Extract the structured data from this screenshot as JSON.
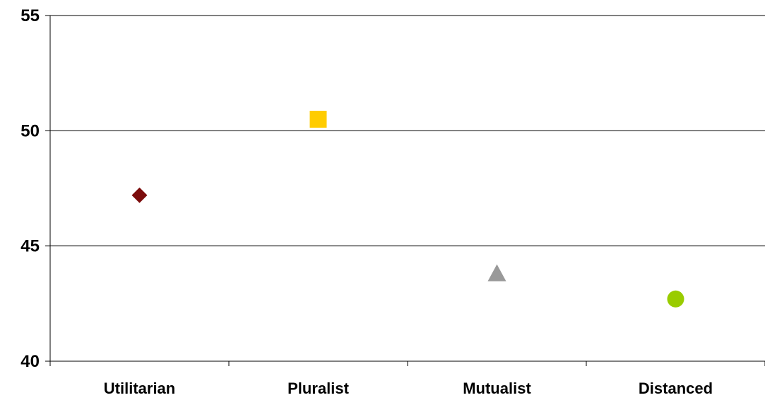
{
  "chart_data": {
    "type": "scatter",
    "title": "",
    "xlabel": "",
    "ylabel": "",
    "categories": [
      "Utilitarian",
      "Pluralist",
      "Mutualist",
      "Distanced"
    ],
    "ylim": [
      40,
      55
    ],
    "yticks": [
      55,
      50,
      45,
      40
    ],
    "grid": true,
    "legend": "none",
    "points": [
      {
        "category": "Utilitarian",
        "value": 47.2,
        "marker": "diamond",
        "color": "#7b0c0c"
      },
      {
        "category": "Pluralist",
        "value": 50.5,
        "marker": "square",
        "color": "#ffcc00"
      },
      {
        "category": "Mutualist",
        "value": 43.8,
        "marker": "triangle",
        "color": "#999999"
      },
      {
        "category": "Distanced",
        "value": 42.7,
        "marker": "circle",
        "color": "#99cc00"
      }
    ]
  }
}
